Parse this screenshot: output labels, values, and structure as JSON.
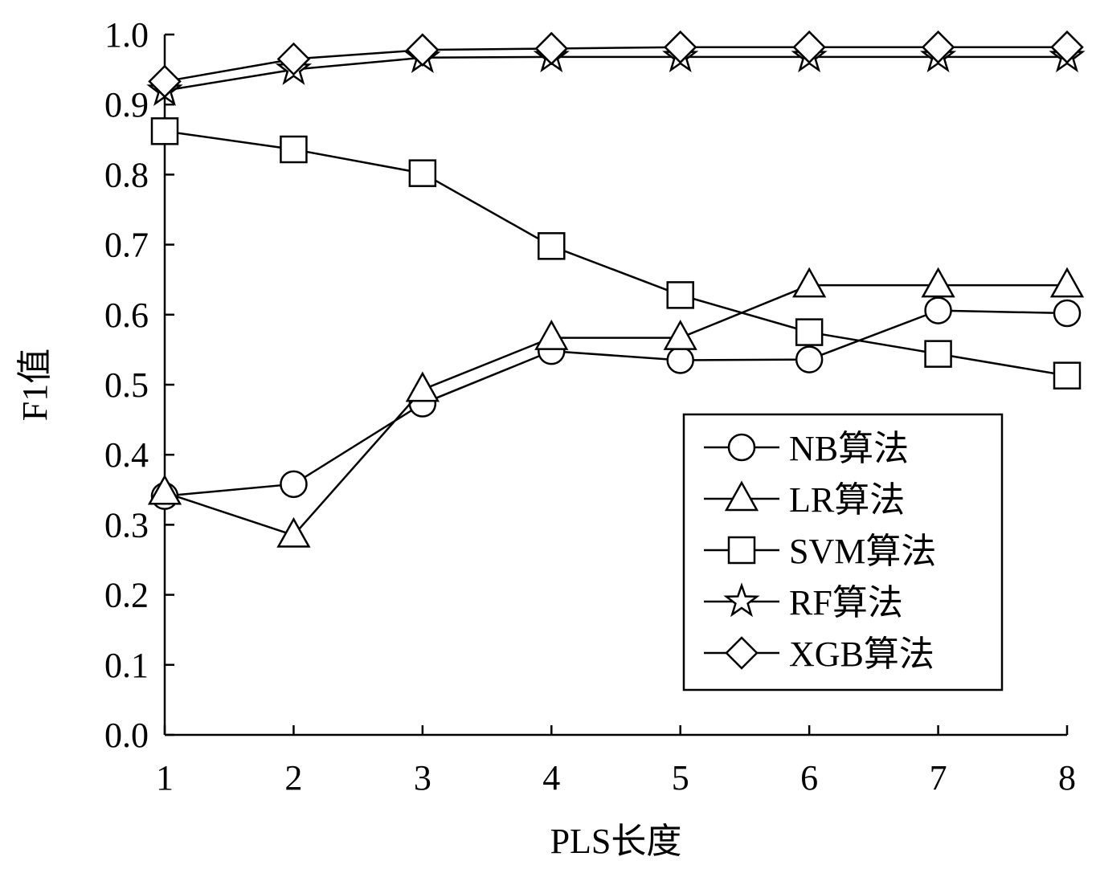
{
  "chart_data": {
    "type": "line",
    "title": "",
    "xlabel": "PLS长度",
    "ylabel": "F1值",
    "x": [
      1,
      2,
      3,
      4,
      5,
      6,
      7,
      8
    ],
    "xlim": [
      1,
      8
    ],
    "ylim": [
      0.0,
      1.0
    ],
    "x_ticks": [
      "1",
      "2",
      "3",
      "4",
      "5",
      "6",
      "7",
      "8"
    ],
    "y_ticks": [
      "0.0",
      "0.1",
      "0.2",
      "0.3",
      "0.4",
      "0.5",
      "0.6",
      "0.7",
      "0.8",
      "0.9",
      "1.0"
    ],
    "grid": false,
    "legend_position": "bottom-right",
    "series": [
      {
        "name": "NB算法",
        "marker": "circle",
        "values": [
          0.341,
          0.358,
          0.473,
          0.548,
          0.535,
          0.536,
          0.606,
          0.602
        ]
      },
      {
        "name": "LR算法",
        "marker": "triangle",
        "values": [
          0.346,
          0.285,
          0.493,
          0.567,
          0.567,
          0.642,
          0.642,
          0.642
        ]
      },
      {
        "name": "SVM算法",
        "marker": "square",
        "values": [
          0.862,
          0.836,
          0.802,
          0.698,
          0.628,
          0.575,
          0.544,
          0.513
        ]
      },
      {
        "name": "RF算法",
        "marker": "star",
        "values": [
          0.92,
          0.95,
          0.967,
          0.968,
          0.968,
          0.968,
          0.968,
          0.968
        ]
      },
      {
        "name": "XGB算法",
        "marker": "diamond",
        "values": [
          0.933,
          0.965,
          0.978,
          0.98,
          0.982,
          0.982,
          0.982,
          0.982
        ]
      }
    ]
  }
}
